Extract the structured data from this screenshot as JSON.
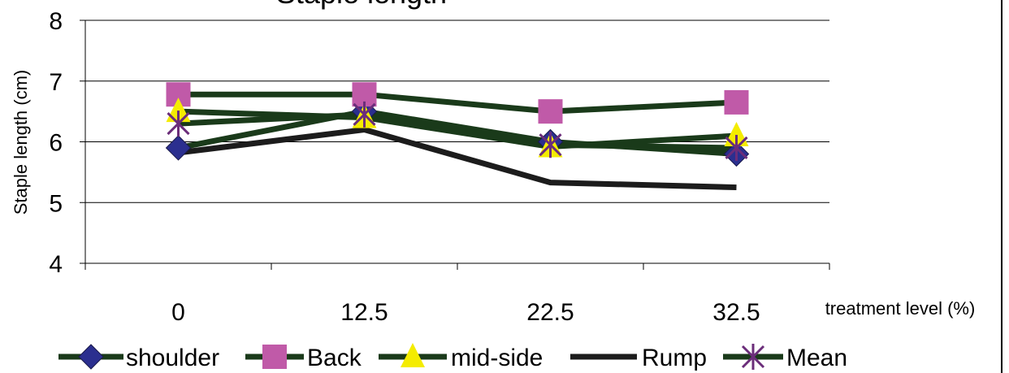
{
  "chart_data": {
    "type": "line",
    "title": "Staple length",
    "xlabel": "treatment level (%)",
    "ylabel": "Staple length (cm)",
    "categories": [
      "0",
      "12.5",
      "22.5",
      "32.5"
    ],
    "ylim": [
      4,
      8
    ],
    "yticks": [
      "4",
      "5",
      "6",
      "7",
      "8"
    ],
    "grid": "horizontal",
    "legend_position": "bottom",
    "series": [
      {
        "name": "shoulder",
        "values": [
          5.9,
          6.5,
          6.0,
          5.8
        ],
        "color": "#1a3a1a",
        "marker": "diamond",
        "marker_color": "#2b2f8f"
      },
      {
        "name": "Back",
        "values": [
          6.78,
          6.78,
          6.5,
          6.65
        ],
        "color": "#1a3a1a",
        "marker": "square",
        "marker_color": "#c05aa8"
      },
      {
        "name": "mid-side",
        "values": [
          6.5,
          6.4,
          5.92,
          6.1
        ],
        "color": "#1a3a1a",
        "marker": "triangle",
        "marker_color": "#f4ec00"
      },
      {
        "name": "Rump",
        "values": [
          5.82,
          6.2,
          5.33,
          5.25
        ],
        "color": "#1c1c1c",
        "marker": "none",
        "marker_color": ""
      },
      {
        "name": "Mean",
        "values": [
          6.3,
          6.45,
          5.95,
          5.9
        ],
        "color": "#1a3a1a",
        "marker": "star",
        "marker_color": "#6b2d7a"
      }
    ]
  }
}
